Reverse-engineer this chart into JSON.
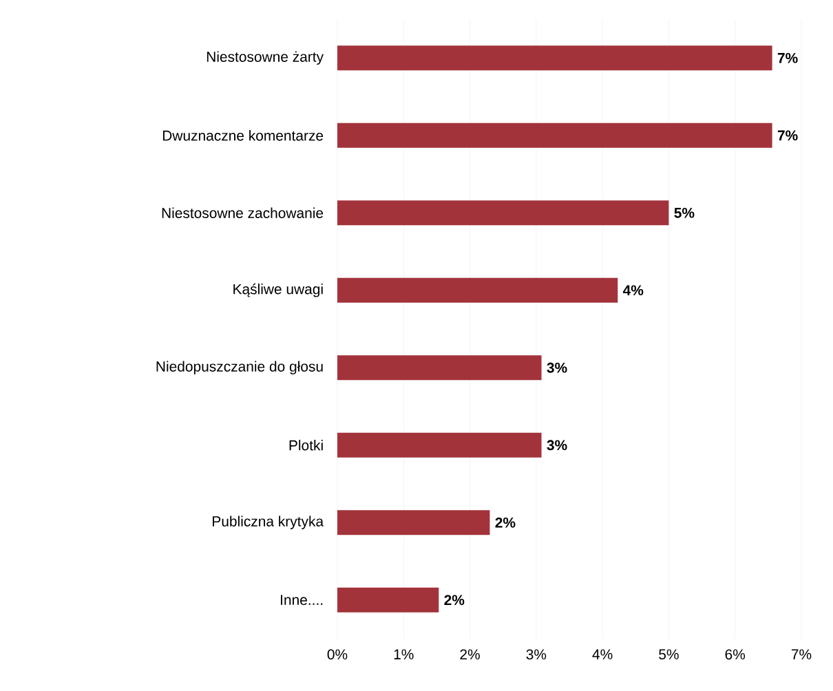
{
  "chart_data": {
    "type": "bar",
    "orientation": "horizontal",
    "categories": [
      "Niestosowne żarty",
      "Dwuznaczne komentarze",
      "Niestosowne zachowanie",
      "Kąśliwe uwagi",
      "Niedopuszczanie do głosu",
      "Plotki",
      "Publiczna krytyka",
      "Inne...."
    ],
    "values": [
      6.56,
      6.56,
      5.0,
      4.23,
      3.08,
      3.08,
      2.3,
      1.53
    ],
    "value_labels": [
      "7%",
      "7%",
      "5%",
      "4%",
      "3%",
      "3%",
      "2%",
      "2%"
    ],
    "color": "#a3333b",
    "xlim": [
      0,
      7
    ],
    "xticks": [
      {
        "value": 0,
        "label": "0%"
      },
      {
        "value": 1,
        "label": "1%"
      },
      {
        "value": 2,
        "label": "2%"
      },
      {
        "value": 3,
        "label": "3%"
      },
      {
        "value": 4,
        "label": "4%"
      },
      {
        "value": 5,
        "label": "5%"
      },
      {
        "value": 6,
        "label": "6%"
      },
      {
        "value": 7,
        "label": "7%"
      }
    ],
    "grid": "x"
  }
}
